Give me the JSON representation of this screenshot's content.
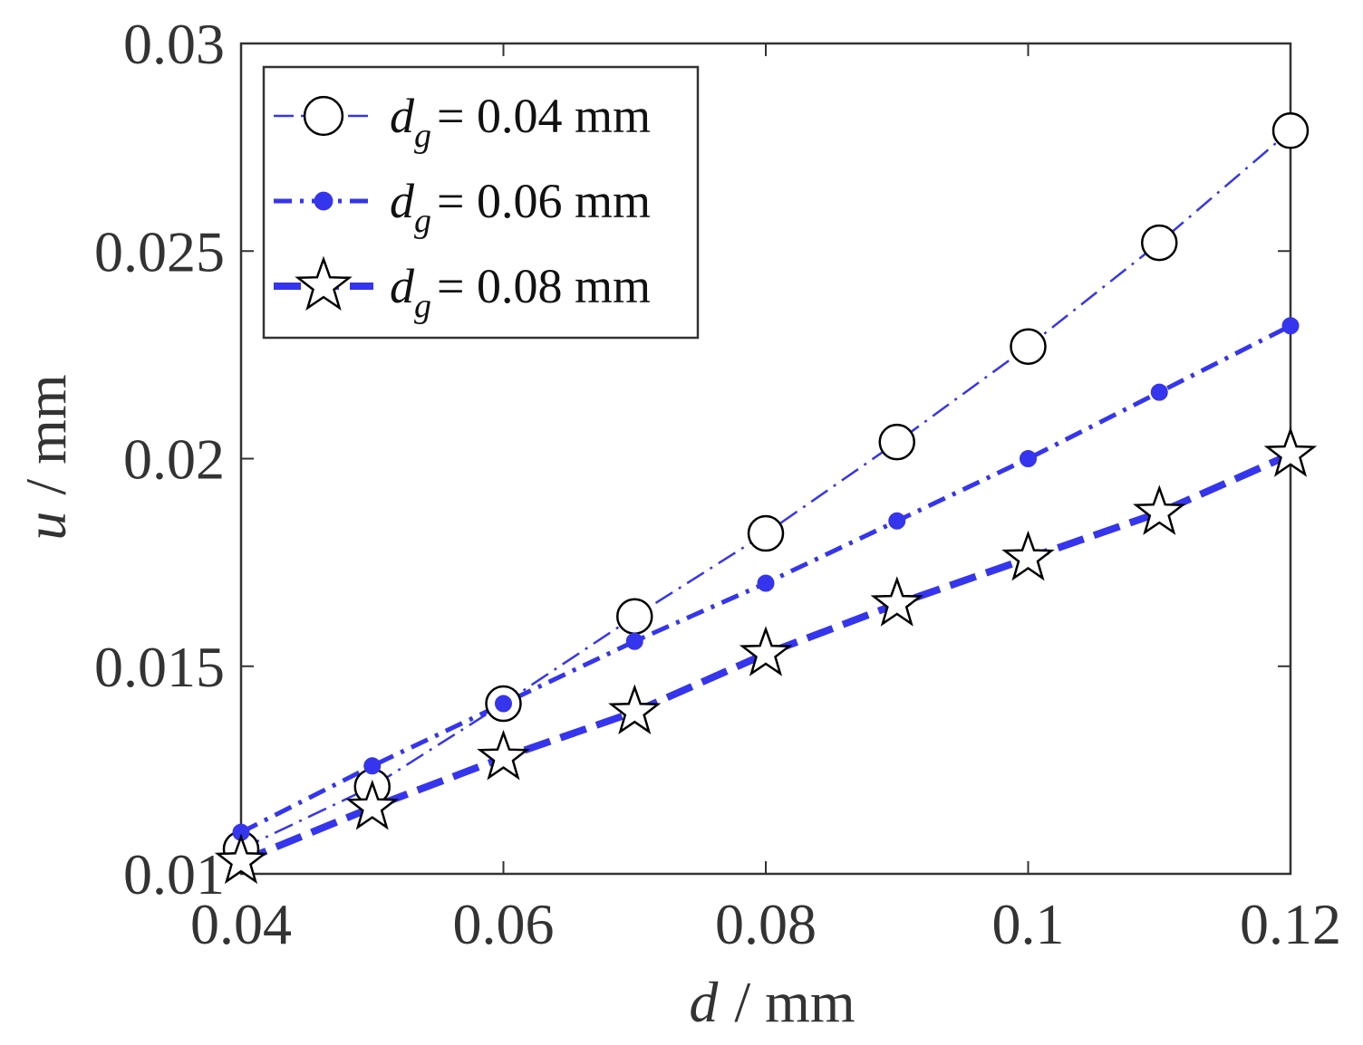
{
  "chart_data": {
    "type": "line",
    "xlabel": {
      "symbol": "d",
      "unit": "/ mm"
    },
    "ylabel": {
      "symbol": "u",
      "unit": "/ mm"
    },
    "xlim": [
      0.04,
      0.12
    ],
    "ylim": [
      0.01,
      0.03
    ],
    "x_ticks": [
      0.04,
      0.06,
      0.08,
      0.1,
      0.12
    ],
    "x_tick_labels": [
      "0.04",
      "0.06",
      "0.08",
      "0.1",
      "0.12"
    ],
    "y_ticks": [
      0.01,
      0.015,
      0.02,
      0.025,
      0.03
    ],
    "y_tick_labels": [
      "0.01",
      "0.015",
      "0.02",
      "0.025",
      "0.03"
    ],
    "legend_position": "top-left",
    "x": [
      0.04,
      0.05,
      0.06,
      0.07,
      0.08,
      0.09,
      0.1,
      0.11,
      0.12
    ],
    "series": [
      {
        "name": "d_g = 0.04 mm",
        "legend": {
          "symbol": "d",
          "sub": "g",
          "value": "= 0.04 mm"
        },
        "marker": "circle",
        "line": "dash-dot-thin",
        "values": [
          0.0106,
          0.0121,
          0.0141,
          0.0162,
          0.0182,
          0.0204,
          0.0227,
          0.0252,
          0.0279
        ]
      },
      {
        "name": "d_g = 0.06 mm",
        "legend": {
          "symbol": "d",
          "sub": "g",
          "value": "= 0.06 mm"
        },
        "marker": "dot",
        "line": "dash-dot-medium",
        "values": [
          0.011,
          0.0126,
          0.0141,
          0.0156,
          0.017,
          0.0185,
          0.02,
          0.0216,
          0.0232
        ]
      },
      {
        "name": "d_g = 0.08 mm",
        "legend": {
          "symbol": "d",
          "sub": "g",
          "value": "= 0.08 mm"
        },
        "marker": "star",
        "line": "dash-thick",
        "values": [
          0.0103,
          0.0116,
          0.0128,
          0.0139,
          0.0153,
          0.0165,
          0.0176,
          0.0187,
          0.0201
        ]
      }
    ],
    "colors": {
      "line": "#3535ee",
      "marker_face": "#ffffff",
      "marker_edge": "#000000",
      "axis": "#333333"
    }
  }
}
